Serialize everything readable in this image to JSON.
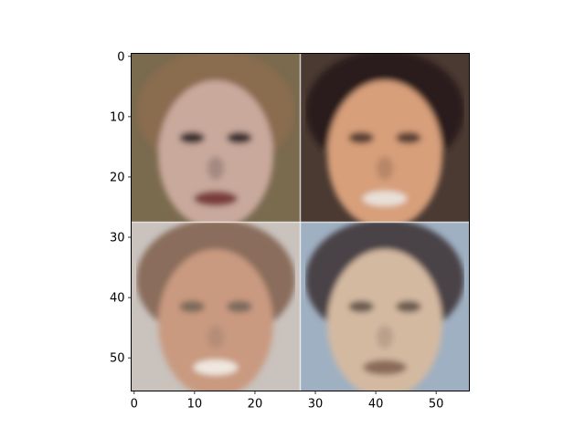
{
  "chart_data": {
    "type": "heatmap",
    "title": "",
    "xlabel": "",
    "ylabel": "",
    "xlim": [
      -0.5,
      55.5
    ],
    "ylim": [
      55.5,
      -0.5
    ],
    "x_ticks": [
      0,
      10,
      20,
      30,
      40,
      50
    ],
    "y_ticks": [
      0,
      10,
      20,
      30,
      40,
      50
    ],
    "x_tick_labels": [
      "0",
      "10",
      "20",
      "30",
      "40",
      "50"
    ],
    "y_tick_labels": [
      "0",
      "10",
      "20",
      "30",
      "40",
      "50"
    ],
    "grid": false,
    "image_size": [
      56,
      56
    ],
    "image_grid": {
      "rows": 2,
      "cols": 2,
      "tile_size": 28
    },
    "tiles": [
      {
        "row": 0,
        "col": 0,
        "subject": "pixelated face with light brown hair",
        "hair": "#8a6c4f",
        "skin": "#c9a99c",
        "background": "#7a6a4e",
        "eyes": "#3a2f2f",
        "mouth": "#7a3e3a"
      },
      {
        "row": 0,
        "col": 1,
        "subject": "pixelated smiling face with dark hair",
        "hair": "#2a1e1c",
        "skin": "#d79f7a",
        "background": "#4a3a32",
        "eyes": "#5a4034",
        "mouth": "#e8e0d8"
      },
      {
        "row": 1,
        "col": 0,
        "subject": "pixelated face with brown hair",
        "hair": "#8a6d5c",
        "skin": "#c99a80",
        "background": "#c9c2bd",
        "eyes": "#7c6a5c",
        "mouth": "#f0e8e0"
      },
      {
        "row": 1,
        "col": 1,
        "subject": "pixelated face with pale skin",
        "hair": "#4a4346",
        "skin": "#d4b9a1",
        "background": "#9fb0c2",
        "eyes": "#6a5a4f",
        "mouth": "#8a6a5a"
      }
    ],
    "colors": {
      "axis": "#000000",
      "background": "#ffffff",
      "tile_divider": "#ffffff"
    }
  }
}
